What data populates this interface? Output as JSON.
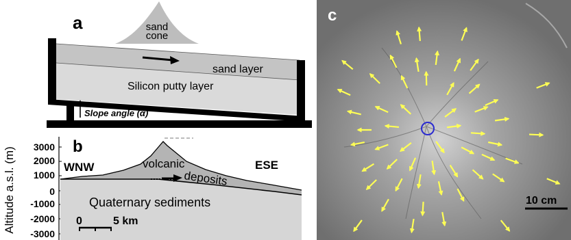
{
  "panel_a": {
    "letter": "a",
    "sand_cone_label_1": "sand",
    "sand_cone_label_2": "cone",
    "sand_layer_label": "sand layer",
    "putty_layer_label": "Silicon putty layer",
    "slope_label": "Slope angle (α)"
  },
  "panel_b": {
    "letter": "b",
    "ylabel": "Altitude a.s.l. (m)",
    "yticks": [
      "3000",
      "2000",
      "1000",
      "0",
      "-1000",
      "-2000",
      "-3000"
    ],
    "west_label": "WNW",
    "east_label": "ESE",
    "volcanic_label": "volcanic",
    "deposits_label": "deposits",
    "sediments_label": "Quaternary sediments",
    "scale_start": "0",
    "scale_end": "5 km"
  },
  "panel_c": {
    "letter": "c",
    "scale_label": "10 cm"
  },
  "colors": {
    "sand": "#c4c4c4",
    "putty": "#dadada",
    "volcanic": "#b4b4b4",
    "sediments": "#d6d6d6",
    "arrow": "#ffff55",
    "marker": "#2a2ad0",
    "photo_bg": "#8a8a8a"
  }
}
